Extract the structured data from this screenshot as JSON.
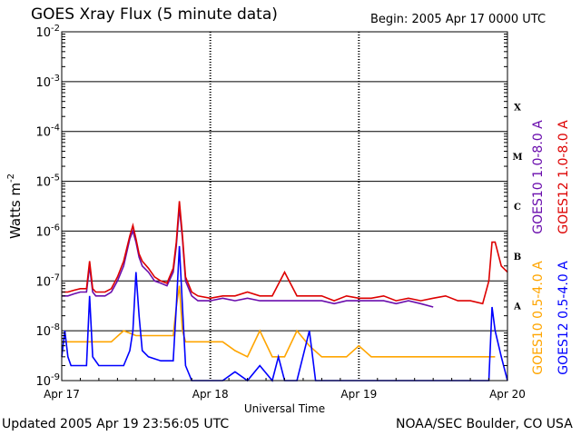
{
  "header": {
    "title": "GOES Xray Flux (5 minute data)",
    "begin": "Begin:  2005 Apr 17 0000 UTC"
  },
  "footer": {
    "updated": "Updated 2005 Apr 19 23:56:05 UTC",
    "credit": "NOAA/SEC Boulder, CO USA"
  },
  "chart_data": {
    "type": "line",
    "title": "GOES Xray Flux (5 minute data)",
    "xlabel": "Universal Time",
    "ylabel": "Watts m",
    "ylabel_sup": "-2",
    "ylog": true,
    "grid": "horizontal at each decade",
    "ylim": [
      1e-09,
      0.01
    ],
    "xlim": [
      0,
      72
    ],
    "x_unit": "hours since 2005 Apr 17 0000 UTC",
    "x_ticks": [
      {
        "x": 0,
        "label": "Apr 17"
      },
      {
        "x": 24,
        "label": "Apr 18"
      },
      {
        "x": 48,
        "label": "Apr 19"
      },
      {
        "x": 72,
        "label": "Apr 20"
      }
    ],
    "y_ticks": [
      {
        "exp": -2,
        "base": "10",
        "sup": "-2"
      },
      {
        "exp": -3,
        "base": "10",
        "sup": "-3"
      },
      {
        "exp": -4,
        "base": "10",
        "sup": "-4"
      },
      {
        "exp": -5,
        "base": "10",
        "sup": "-5"
      },
      {
        "exp": -6,
        "base": "10",
        "sup": "-6"
      },
      {
        "exp": -7,
        "base": "10",
        "sup": "-7"
      },
      {
        "exp": -8,
        "base": "10",
        "sup": "-8"
      },
      {
        "exp": -9,
        "base": "10",
        "sup": "-9"
      }
    ],
    "flare_classes": [
      {
        "label": "X",
        "exp": -4
      },
      {
        "label": "M",
        "exp": -5
      },
      {
        "label": "C",
        "exp": -6
      },
      {
        "label": "B",
        "exp": -7
      },
      {
        "label": "A",
        "exp": -8
      }
    ],
    "series": [
      {
        "name": "GOES10 1.0-8.0 A",
        "color": "#6a0dad",
        "x": [
          0,
          1,
          2,
          3,
          4,
          4.5,
          5,
          5.5,
          6,
          7,
          8,
          9,
          10,
          11,
          11.5,
          12,
          12.5,
          13,
          14,
          15,
          16,
          17,
          18,
          18.5,
          19,
          19.5,
          20,
          21,
          22,
          24,
          26,
          28,
          30,
          32,
          34,
          36,
          38,
          40,
          42,
          44,
          46,
          48,
          50,
          52,
          54,
          56,
          58,
          60
        ],
        "y": [
          5e-08,
          5e-08,
          5.5e-08,
          6e-08,
          6e-08,
          2e-07,
          6e-08,
          5e-08,
          5e-08,
          5e-08,
          6e-08,
          1e-07,
          2e-07,
          7e-07,
          1e-06,
          6e-07,
          3e-07,
          2e-07,
          1.5e-07,
          1e-07,
          9e-08,
          8e-08,
          1.5e-07,
          5e-07,
          3e-06,
          7e-07,
          1e-07,
          5e-08,
          4e-08,
          4e-08,
          4.5e-08,
          4e-08,
          4.5e-08,
          4e-08,
          4e-08,
          4e-08,
          4e-08,
          4e-08,
          4e-08,
          3.5e-08,
          4e-08,
          4e-08,
          4e-08,
          4e-08,
          3.5e-08,
          4e-08,
          3.5e-08,
          3e-08
        ]
      },
      {
        "name": "GOES12 1.0-8.0 A",
        "color": "#dd0000",
        "x": [
          0,
          1,
          2,
          3,
          4,
          4.5,
          5,
          5.5,
          6,
          7,
          8,
          9,
          10,
          11,
          11.5,
          12,
          12.5,
          13,
          14,
          15,
          16,
          17,
          18,
          18.5,
          19,
          19.5,
          20,
          21,
          22,
          24,
          26,
          28,
          30,
          32,
          34,
          36,
          38,
          40,
          42,
          44,
          46,
          48,
          50,
          52,
          54,
          56,
          58,
          60,
          62,
          64,
          66,
          68,
          69,
          69.5,
          70,
          71,
          72
        ],
        "y": [
          6e-08,
          6e-08,
          6.5e-08,
          7e-08,
          7e-08,
          2.5e-07,
          7e-08,
          6e-08,
          6e-08,
          6e-08,
          7e-08,
          1.2e-07,
          2.5e-07,
          8e-07,
          1.3e-06,
          7e-07,
          3.5e-07,
          2.5e-07,
          1.8e-07,
          1.2e-07,
          1e-07,
          9e-08,
          1.8e-07,
          6e-07,
          4e-06,
          8e-07,
          1.2e-07,
          6e-08,
          5e-08,
          4.5e-08,
          5e-08,
          5e-08,
          6e-08,
          5e-08,
          5e-08,
          1.5e-07,
          5e-08,
          5e-08,
          5e-08,
          4e-08,
          5e-08,
          4.5e-08,
          4.5e-08,
          5e-08,
          4e-08,
          4.5e-08,
          4e-08,
          4.5e-08,
          5e-08,
          4e-08,
          4e-08,
          3.5e-08,
          1e-07,
          6e-07,
          6e-07,
          2e-07,
          1.5e-07
        ]
      },
      {
        "name": "GOES10 0.5-4.0 A",
        "color": "#ffa500",
        "x": [
          0,
          1,
          2,
          4,
          6,
          8,
          10,
          12,
          14,
          16,
          18,
          18.5,
          19,
          19.5,
          20,
          22,
          24,
          26,
          28,
          30,
          32,
          34,
          36,
          38,
          40,
          42,
          44,
          46,
          48,
          50,
          52,
          54,
          56,
          58,
          60,
          62,
          64,
          66,
          68,
          70
        ],
        "y": [
          6e-09,
          6e-09,
          6e-09,
          6e-09,
          6e-09,
          6e-09,
          1e-08,
          8e-09,
          8e-09,
          8e-09,
          8e-09,
          3e-08,
          8e-08,
          1e-08,
          6e-09,
          6e-09,
          6e-09,
          6e-09,
          4e-09,
          3e-09,
          1e-08,
          3e-09,
          3e-09,
          1e-08,
          5e-09,
          3e-09,
          3e-09,
          3e-09,
          5e-09,
          3e-09,
          3e-09,
          3e-09,
          3e-09,
          3e-09,
          3e-09,
          3e-09,
          3e-09,
          3e-09,
          3e-09,
          3e-09
        ]
      },
      {
        "name": "GOES12 0.5-4.0 A",
        "color": "#0000ff",
        "x": [
          0,
          0.5,
          1,
          1.5,
          2,
          3,
          4,
          4.5,
          5,
          6,
          8,
          10,
          11,
          11.5,
          12,
          12.5,
          13,
          14,
          16,
          18,
          18.5,
          19,
          19.5,
          20,
          21,
          22,
          24,
          26,
          28,
          30,
          32,
          34,
          35,
          36,
          38,
          40,
          41,
          42,
          44,
          46,
          48,
          50,
          52,
          54,
          56,
          58,
          60,
          62,
          64,
          66,
          68,
          69,
          69.5,
          70,
          71,
          72
        ],
        "y": [
          3e-09,
          1e-08,
          3e-09,
          2e-09,
          2e-09,
          2e-09,
          2e-09,
          5e-08,
          3e-09,
          2e-09,
          2e-09,
          2e-09,
          4e-09,
          1e-08,
          1.5e-07,
          2e-08,
          4e-09,
          3e-09,
          2.5e-09,
          2.5e-09,
          3e-08,
          5e-07,
          3e-08,
          2e-09,
          1e-09,
          1e-09,
          1e-09,
          1e-09,
          1.5e-09,
          1e-09,
          2e-09,
          1e-09,
          3e-09,
          1e-09,
          1e-09,
          1e-08,
          1e-09,
          1e-09,
          1e-09,
          1e-09,
          1e-09,
          1e-09,
          1e-09,
          1e-09,
          1e-09,
          1e-09,
          1e-09,
          1e-09,
          1e-09,
          1e-09,
          1e-09,
          1e-09,
          3e-08,
          1e-08,
          3e-09,
          1e-09
        ]
      }
    ]
  }
}
